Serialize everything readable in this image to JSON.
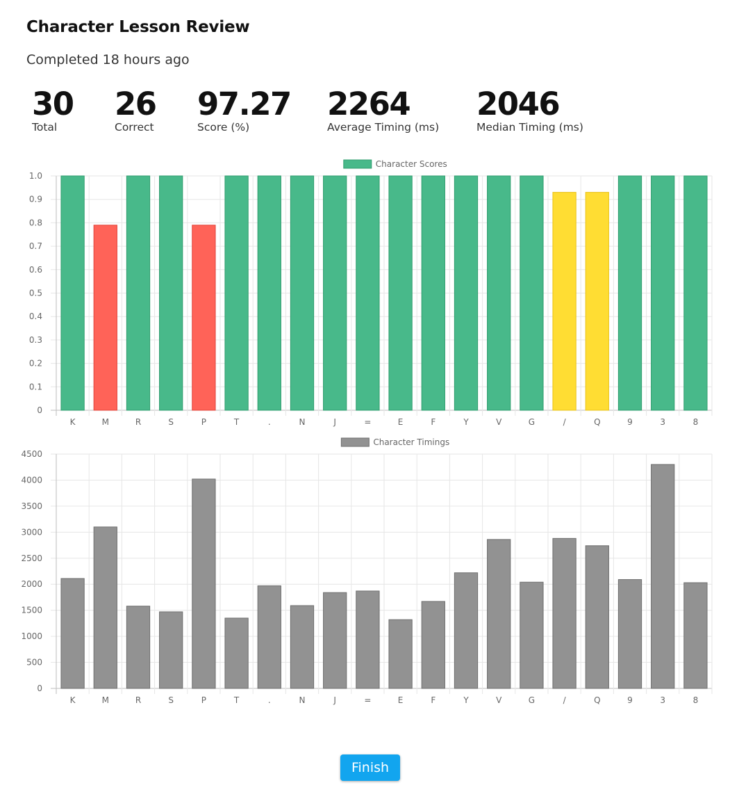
{
  "page": {
    "title": "Character Lesson Review",
    "subtitle": "Completed 18 hours ago"
  },
  "stats": [
    {
      "value": "30",
      "label": "Total"
    },
    {
      "value": "26",
      "label": "Correct"
    },
    {
      "value": "97.27",
      "label": "Score (%)"
    },
    {
      "value": "2264",
      "label": "Average Timing (ms)"
    },
    {
      "value": "2046",
      "label": "Median Timing (ms)"
    }
  ],
  "colors": {
    "green": "#48b98a",
    "green_border": "#2e9c6d",
    "red": "#ff6358",
    "red_border": "#e0433a",
    "yellow": "#ffdd33",
    "yellow_border": "#e8c21a",
    "gray": "#929292",
    "gray_border": "#6e6e6e",
    "grid": "#e6e6e6",
    "accent": "#12a5ef"
  },
  "chart_data": [
    {
      "type": "bar",
      "legend": "Character Scores",
      "categories": [
        "K",
        "M",
        "R",
        "S",
        "P",
        "T",
        ".",
        "N",
        "J",
        "=",
        "E",
        "F",
        "Y",
        "V",
        "G",
        "/",
        "Q",
        "9",
        "3",
        "8"
      ],
      "series": [
        {
          "name": "Character Scores",
          "values": [
            1.0,
            0.79,
            1.0,
            1.0,
            0.79,
            1.0,
            1.0,
            1.0,
            1.0,
            1.0,
            1.0,
            1.0,
            1.0,
            1.0,
            1.0,
            0.93,
            0.93,
            1.0,
            1.0,
            1.0
          ],
          "colors": [
            "green",
            "red",
            "green",
            "green",
            "red",
            "green",
            "green",
            "green",
            "green",
            "green",
            "green",
            "green",
            "green",
            "green",
            "green",
            "yellow",
            "yellow",
            "green",
            "green",
            "green"
          ]
        }
      ],
      "ylim": [
        0,
        1.0
      ],
      "yticks": [
        "0",
        "0.1",
        "0.2",
        "0.3",
        "0.4",
        "0.5",
        "0.6",
        "0.7",
        "0.8",
        "0.9",
        "1.0"
      ],
      "grid": true,
      "legend_position": "top-center"
    },
    {
      "type": "bar",
      "legend": "Character Timings",
      "categories": [
        "K",
        "M",
        "R",
        "S",
        "P",
        "T",
        ".",
        "N",
        "J",
        "=",
        "E",
        "F",
        "Y",
        "V",
        "G",
        "/",
        "Q",
        "9",
        "3",
        "8"
      ],
      "series": [
        {
          "name": "Character Timings",
          "values": [
            2110,
            3100,
            1580,
            1470,
            4020,
            1350,
            1970,
            1590,
            1840,
            1870,
            1320,
            1670,
            2220,
            2860,
            2040,
            2880,
            2740,
            2090,
            4300,
            2030
          ],
          "colors": [
            "gray",
            "gray",
            "gray",
            "gray",
            "gray",
            "gray",
            "gray",
            "gray",
            "gray",
            "gray",
            "gray",
            "gray",
            "gray",
            "gray",
            "gray",
            "gray",
            "gray",
            "gray",
            "gray",
            "gray"
          ]
        }
      ],
      "ylim": [
        0,
        4500
      ],
      "yticks": [
        "0",
        "500",
        "1000",
        "1500",
        "2000",
        "2500",
        "3000",
        "3500",
        "4000",
        "4500"
      ],
      "grid": true,
      "legend_position": "top-center"
    }
  ],
  "finish": {
    "label": "Finish"
  }
}
